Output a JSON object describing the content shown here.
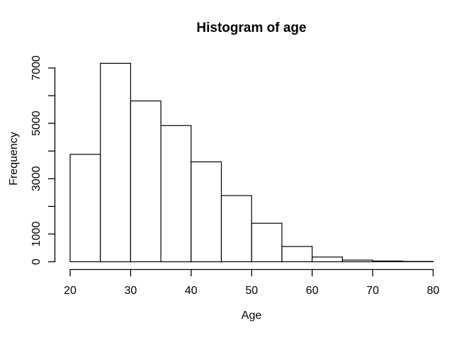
{
  "chart_data": {
    "type": "bar",
    "subtype": "histogram",
    "title": "Histogram of age",
    "xlabel": "Age",
    "ylabel": "Frequency",
    "xlim": [
      20,
      80
    ],
    "ylim": [
      0,
      7000
    ],
    "bin_width": 5,
    "bin_edges": [
      20,
      25,
      30,
      35,
      40,
      45,
      50,
      55,
      60,
      65,
      70,
      75,
      80
    ],
    "counts": [
      3880,
      7170,
      5810,
      4920,
      3610,
      2390,
      1390,
      550,
      170,
      60,
      25,
      10
    ],
    "x_ticks": [
      20,
      30,
      40,
      50,
      60,
      70,
      80
    ],
    "y_ticks": [
      0,
      1000,
      2000,
      3000,
      4000,
      5000,
      6000,
      7000
    ],
    "y_tick_labels": [
      "0",
      "1000",
      "",
      "3000",
      "",
      "5000",
      "",
      "7000"
    ],
    "grid": false,
    "legend": false,
    "bar_fill": "#ffffff",
    "stroke_color": "#000000",
    "background": "#ffffff"
  }
}
